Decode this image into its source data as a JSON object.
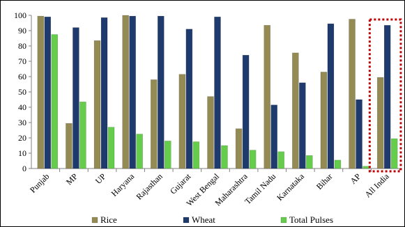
{
  "chart_data": {
    "type": "bar",
    "title": "",
    "xlabel": "",
    "ylabel": "",
    "ylim": [
      0,
      100
    ],
    "yticks": [
      0,
      10,
      20,
      30,
      40,
      50,
      60,
      70,
      80,
      90,
      100
    ],
    "grid": false,
    "legend_position": "bottom",
    "categories": [
      "Punjab",
      "MP",
      "UP",
      "Haryana",
      "Rajasthan",
      "Gujarat",
      "West Bengal",
      "Maharashtra",
      "Tamil Nadu",
      "Karnataka",
      "Bihar",
      "AP",
      "All India"
    ],
    "series": [
      {
        "name": "Rice",
        "color": "#948a54",
        "values": [
          99.5,
          29.5,
          83.5,
          100,
          58,
          61.5,
          47,
          26,
          93.5,
          75.5,
          63,
          97.5,
          59.5
        ]
      },
      {
        "name": "Wheat",
        "color": "#1f3a6d",
        "values": [
          99,
          92,
          98.5,
          99.5,
          99.5,
          91,
          99,
          74,
          41.5,
          56,
          94.5,
          45,
          93.5
        ]
      },
      {
        "name": "Total Pulses",
        "color": "#66cc4c",
        "values": [
          87.5,
          43.5,
          27,
          22.5,
          18,
          17.5,
          15,
          12,
          11,
          8.5,
          5.5,
          1.5,
          19.5
        ]
      }
    ],
    "highlight": {
      "category": "All India",
      "style": "dotted-box",
      "color": "#c00000"
    }
  }
}
